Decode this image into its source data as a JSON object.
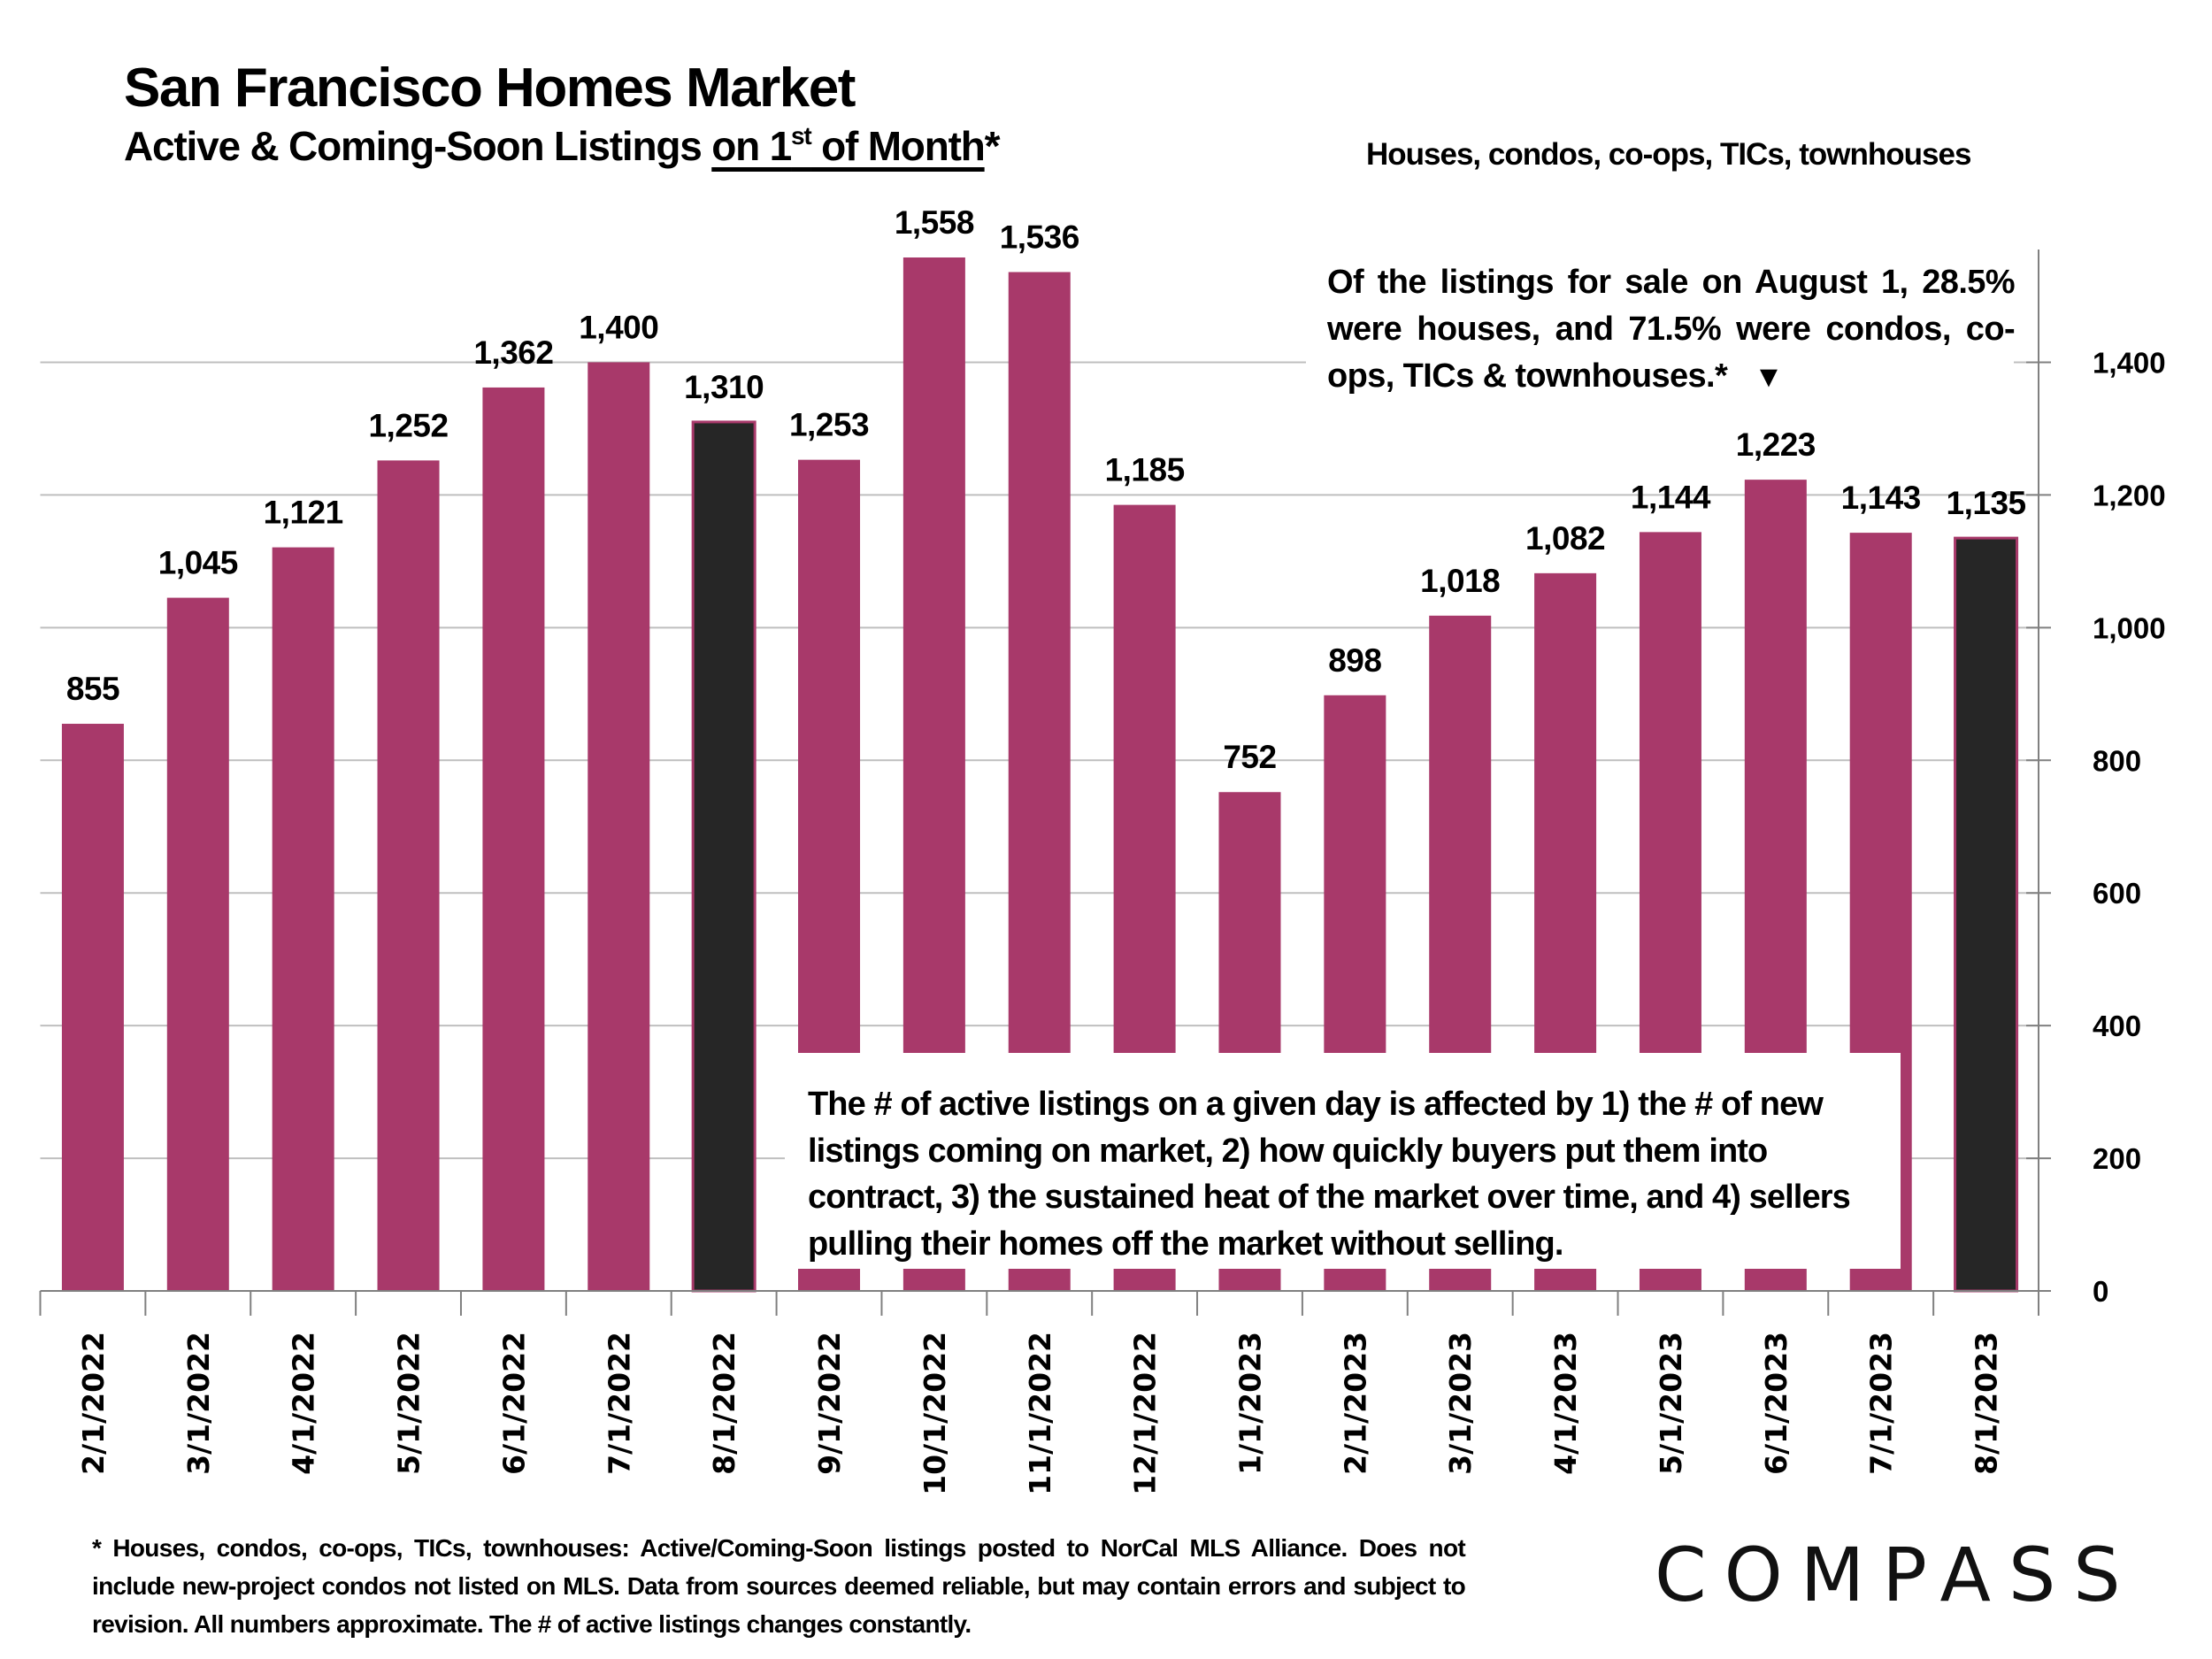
{
  "header": {
    "title": "San Francisco Homes Market",
    "subtitle_prefix": "Active & Coming-Soon Listings ",
    "subtitle_underlined_1": "on 1",
    "subtitle_sup": "st",
    "subtitle_underlined_2": " of Month",
    "subtitle_suffix": "*",
    "scope": "Houses, condos, co-ops, TICs, townhouses"
  },
  "annotations": {
    "top_right": "Of the listings for sale on August 1, 28.5% were houses, and 71.5% were condos, co-ops, TICs & townhouses.*",
    "top_right_arrow": "▼",
    "middle": "The # of active listings on a given day is affected by 1) the # of new listings coming on market, 2) how quickly buyers put them into contract, 3) the sustained heat of the market over time, and 4) sellers pulling their homes off the market without selling."
  },
  "footnote": "* Houses, condos, co-ops, TICs, townhouses: Active/Coming-Soon listings posted to NorCal MLS Alliance. Does not include new-project condos not listed on MLS. Data from sources deemed reliable, but may contain errors and subject to revision. All numbers approximate. The # of active listings changes constantly.",
  "logo": {
    "text": "COMPASS"
  },
  "colors": {
    "bar": "#A8396A",
    "highlight_bar": "#262626",
    "highlight_outline": "#A8396A",
    "grid": "#BFBFBF",
    "axis": "#808080"
  },
  "chart_data": {
    "type": "bar",
    "title": "San Francisco Homes Market",
    "subtitle": "Active & Coming-Soon Listings on 1st of Month*",
    "xlabel": "",
    "ylabel": "",
    "ylim": [
      0,
      1570
    ],
    "y_axis_position": "right",
    "yticks": [
      0,
      200,
      400,
      600,
      800,
      1000,
      1200,
      1400
    ],
    "ytick_labels": [
      "0",
      "200",
      "400",
      "600",
      "800",
      "1,000",
      "1,200",
      "1,400"
    ],
    "grid": true,
    "legend": "none",
    "categories": [
      "2/1/2022",
      "3/1/2022",
      "4/1/2022",
      "5/1/2022",
      "6/1/2022",
      "7/1/2022",
      "8/1/2022",
      "9/1/2022",
      "10/1/2022",
      "11/1/2022",
      "12/1/2022",
      "1/1/2023",
      "2/1/2023",
      "3/1/2023",
      "4/1/2023",
      "5/1/2023",
      "6/1/2023",
      "7/1/2023",
      "8/1/2023"
    ],
    "values": [
      855,
      1045,
      1121,
      1252,
      1362,
      1400,
      1310,
      1253,
      1558,
      1536,
      1185,
      752,
      898,
      1018,
      1082,
      1144,
      1223,
      1143,
      1135
    ],
    "value_labels": [
      "855",
      "1,045",
      "1,121",
      "1,252",
      "1,362",
      "1,400",
      "1,310",
      "1,253",
      "1,558",
      "1,536",
      "1,185",
      "752",
      "898",
      "1,018",
      "1,082",
      "1,144",
      "1,223",
      "1,143",
      "1,135"
    ],
    "highlighted": [
      "8/1/2022",
      "8/1/2023"
    ]
  }
}
